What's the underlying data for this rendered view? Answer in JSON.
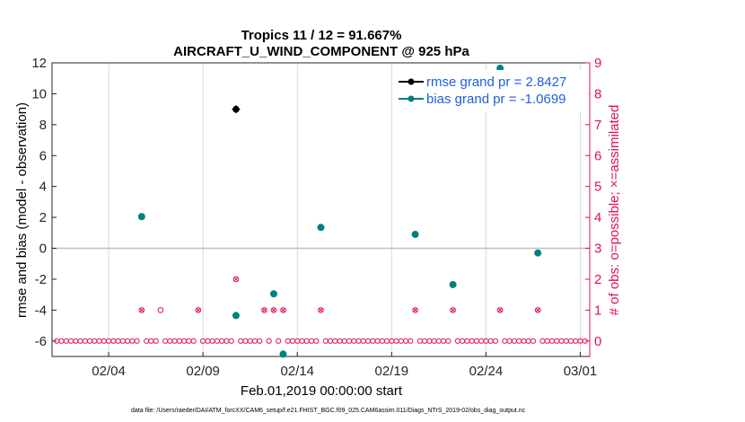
{
  "colors": {
    "rmse": "#000000",
    "bias": "#008080",
    "obs": "#e0105a",
    "grid": "#d9d9d9",
    "zero": "#bfbfbf",
    "legend_text": "#1f5fe0"
  },
  "chart_data": {
    "type": "scatter",
    "title": "Tropics 11 / 12 = 91.667%",
    "subtitle": "AIRCRAFT_U_WIND_COMPONENT @ 925 hPa",
    "xlabel": "Feb.01,2019 00:00:00 start",
    "ylabel": "rmse and bias (model - observation)",
    "y2label": "# of obs: o=possible; ×=assimilated",
    "footnote": "data file: /Users/raeder/DAI/ATM_forcXX/CAM6_setup/f.e21.FHIST_BGC.f09_025.CAM6assim.011/Diags_NTrS_2019-02/obs_diag_output.nc",
    "xlim": [
      1,
      29.5
    ],
    "xtick_labels": [
      "02/04",
      "02/09",
      "02/14",
      "02/19",
      "02/24",
      "03/01"
    ],
    "xtick_values": [
      4,
      9,
      14,
      19,
      24,
      29
    ],
    "ylim": [
      -7,
      12
    ],
    "yticks": [
      -6,
      -4,
      -2,
      0,
      2,
      4,
      6,
      8,
      10,
      12
    ],
    "y2lim": [
      -0.5,
      9
    ],
    "y2ticks": [
      0,
      1,
      2,
      3,
      4,
      5,
      6,
      7,
      8,
      9
    ],
    "grid": true,
    "legend_position": "top-right",
    "legend": [
      "rmse grand pr = 2.8427",
      "bias grand pr = -1.0699"
    ],
    "series": [
      {
        "name": "rmse",
        "axis": "left",
        "points": [
          [
            10.75,
            9.0
          ]
        ]
      },
      {
        "name": "bias",
        "axis": "left",
        "points": [
          [
            5.75,
            2.05
          ],
          [
            10.75,
            -4.35
          ],
          [
            12.75,
            -2.95
          ],
          [
            13.25,
            -6.85
          ],
          [
            15.25,
            1.35
          ],
          [
            20.25,
            0.9
          ],
          [
            22.25,
            -2.35
          ],
          [
            24.75,
            11.65
          ],
          [
            26.75,
            -0.3
          ]
        ]
      },
      {
        "name": "obs_possible",
        "axis": "right",
        "points": [
          [
            6.75,
            1
          ]
        ]
      },
      {
        "name": "obs_assimilated",
        "axis": "right",
        "points": [
          [
            5.75,
            1
          ],
          [
            8.75,
            1
          ],
          [
            10.75,
            2
          ],
          [
            12.25,
            1
          ],
          [
            12.75,
            1
          ],
          [
            13.25,
            1
          ],
          [
            15.25,
            1
          ],
          [
            20.25,
            1
          ],
          [
            22.25,
            1
          ],
          [
            24.75,
            1
          ],
          [
            26.75,
            1
          ]
        ]
      },
      {
        "name": "obs_none",
        "axis": "right",
        "x_start": 1.25,
        "x_end": 29.25,
        "step": 0.25,
        "value": 0
      }
    ]
  }
}
